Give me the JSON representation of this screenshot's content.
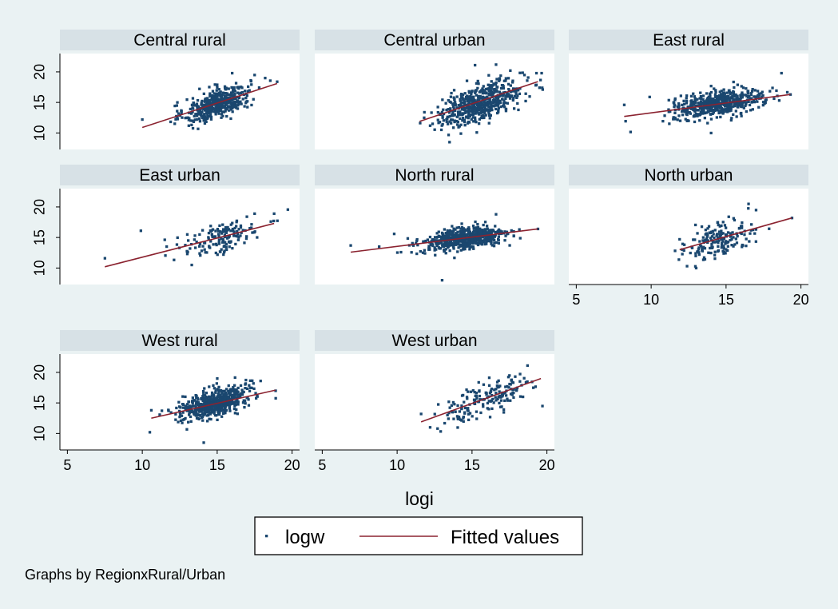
{
  "chart_data": {
    "type": "scatter",
    "xlabel": "logi",
    "xlim": [
      4.5,
      20.5
    ],
    "ylim": [
      7.3,
      23.0
    ],
    "xticks": [
      5,
      10,
      15,
      20
    ],
    "yticks": [
      10,
      15,
      20
    ],
    "note": "Graphs by RegionxRural/Urban",
    "legend": {
      "position": "bottom",
      "series_label": "logw",
      "fit_label": "Fitted values"
    },
    "colors": {
      "background": "#eaf2f3",
      "strip": "#d7e1e6",
      "plot": "#ffffff",
      "marker": "#1a476f",
      "fit": "#8b2330"
    },
    "panels": [
      {
        "title": "Central rural",
        "fit": [
          [
            10.0,
            10.9
          ],
          [
            19.0,
            18.1
          ]
        ],
        "cloud": {
          "cx": 15.0,
          "cy": 14.8,
          "sx": 1.1,
          "sy": 1.6,
          "n": 450
        },
        "extra": [
          [
            10.0,
            12.2
          ],
          [
            12.3,
            14.5
          ],
          [
            13.1,
            11.2
          ],
          [
            16.0,
            19.8
          ],
          [
            17.5,
            19.5
          ],
          [
            18.2,
            19.0
          ],
          [
            19.0,
            18.4
          ]
        ]
      },
      {
        "title": "Central urban",
        "fit": [
          [
            11.5,
            11.9
          ],
          [
            19.4,
            18.4
          ]
        ],
        "cloud": {
          "cx": 15.6,
          "cy": 15.0,
          "sx": 1.4,
          "sy": 1.9,
          "n": 550
        },
        "extra": [
          [
            11.8,
            12.5
          ],
          [
            12.2,
            11.2
          ],
          [
            13.5,
            8.5
          ],
          [
            15.2,
            21.1
          ],
          [
            16.6,
            21.2
          ],
          [
            18.5,
            19.5
          ],
          [
            19.3,
            19.8
          ]
        ]
      },
      {
        "title": "East rural",
        "fit": [
          [
            8.2,
            12.7
          ],
          [
            19.3,
            16.3
          ]
        ],
        "cloud": {
          "cx": 14.5,
          "cy": 14.8,
          "sx": 1.5,
          "sy": 1.3,
          "n": 550
        },
        "extra": [
          [
            8.2,
            14.6
          ],
          [
            9.9,
            15.9
          ],
          [
            11.5,
            15.0
          ],
          [
            12.5,
            12.0
          ],
          [
            14.0,
            10.0
          ],
          [
            18.7,
            19.8
          ],
          [
            19.3,
            16.3
          ]
        ]
      },
      {
        "title": "East urban",
        "fit": [
          [
            7.5,
            10.2
          ],
          [
            18.8,
            17.3
          ]
        ],
        "cloud": {
          "cx": 15.3,
          "cy": 15.0,
          "sx": 1.4,
          "sy": 1.7,
          "n": 150
        },
        "extra": [
          [
            7.5,
            11.6
          ],
          [
            9.9,
            16.1
          ],
          [
            13.3,
            10.5
          ],
          [
            17.5,
            18.9
          ],
          [
            18.8,
            18.9
          ],
          [
            13.0,
            15.5
          ]
        ]
      },
      {
        "title": "North rural",
        "fit": [
          [
            6.9,
            12.6
          ],
          [
            19.4,
            16.4
          ]
        ],
        "cloud": {
          "cx": 14.5,
          "cy": 14.8,
          "sx": 1.4,
          "sy": 1.2,
          "n": 600
        },
        "extra": [
          [
            6.9,
            13.7
          ],
          [
            8.8,
            13.5
          ],
          [
            9.8,
            15.6
          ],
          [
            13.0,
            8.0
          ],
          [
            16.6,
            18.8
          ],
          [
            19.4,
            16.4
          ]
        ]
      },
      {
        "title": "North urban",
        "fit": [
          [
            11.9,
            13.0
          ],
          [
            19.4,
            18.2
          ]
        ],
        "cloud": {
          "cx": 14.4,
          "cy": 14.6,
          "sx": 1.1,
          "sy": 1.8,
          "n": 180
        },
        "extra": [
          [
            11.9,
            14.7
          ],
          [
            13.0,
            10.0
          ],
          [
            16.5,
            20.5
          ],
          [
            17.0,
            19.5
          ],
          [
            19.4,
            18.2
          ]
        ]
      },
      {
        "title": "West rural",
        "fit": [
          [
            10.6,
            12.5
          ],
          [
            18.9,
            17.1
          ]
        ],
        "cloud": {
          "cx": 14.8,
          "cy": 15.0,
          "sx": 1.1,
          "sy": 1.5,
          "n": 550
        },
        "extra": [
          [
            10.5,
            10.2
          ],
          [
            10.6,
            13.8
          ],
          [
            14.1,
            8.5
          ],
          [
            15.0,
            19.0
          ],
          [
            17.9,
            18.6
          ],
          [
            18.9,
            17.0
          ]
        ]
      },
      {
        "title": "West urban",
        "fit": [
          [
            11.6,
            11.9
          ],
          [
            19.6,
            19.0
          ]
        ],
        "cloud": {
          "cx": 15.7,
          "cy": 15.5,
          "sx": 1.5,
          "sy": 1.8,
          "n": 170
        },
        "extra": [
          [
            11.6,
            13.2
          ],
          [
            12.2,
            11.0
          ],
          [
            12.7,
            10.8
          ],
          [
            17.5,
            19.5
          ],
          [
            18.4,
            16.0
          ],
          [
            19.7,
            14.5
          ]
        ]
      }
    ]
  }
}
